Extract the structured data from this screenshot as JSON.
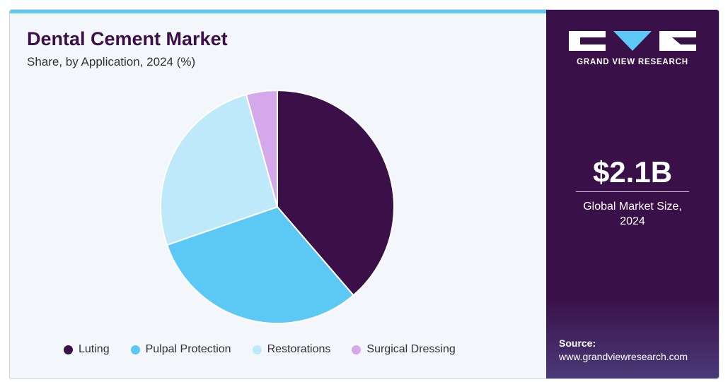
{
  "header": {
    "title": "Dental Cement Market",
    "subtitle": "Share, by Application, 2024 (%)"
  },
  "chart_data": {
    "type": "pie",
    "categories": [
      "Luting",
      "Pulpal Protection",
      "Restorations",
      "Surgical Dressing"
    ],
    "values": [
      38.7,
      31.0,
      26.0,
      4.3
    ],
    "colors": [
      "#3b0f47",
      "#5bc8f5",
      "#bde9fa",
      "#d4a8ea"
    ]
  },
  "sidebar": {
    "brand": "GRAND VIEW RESEARCH",
    "market_size": "$2.1B",
    "market_size_label": "Global Market Size, 2024",
    "source_label": "Source:",
    "source_url": "www.grandviewresearch.com"
  }
}
